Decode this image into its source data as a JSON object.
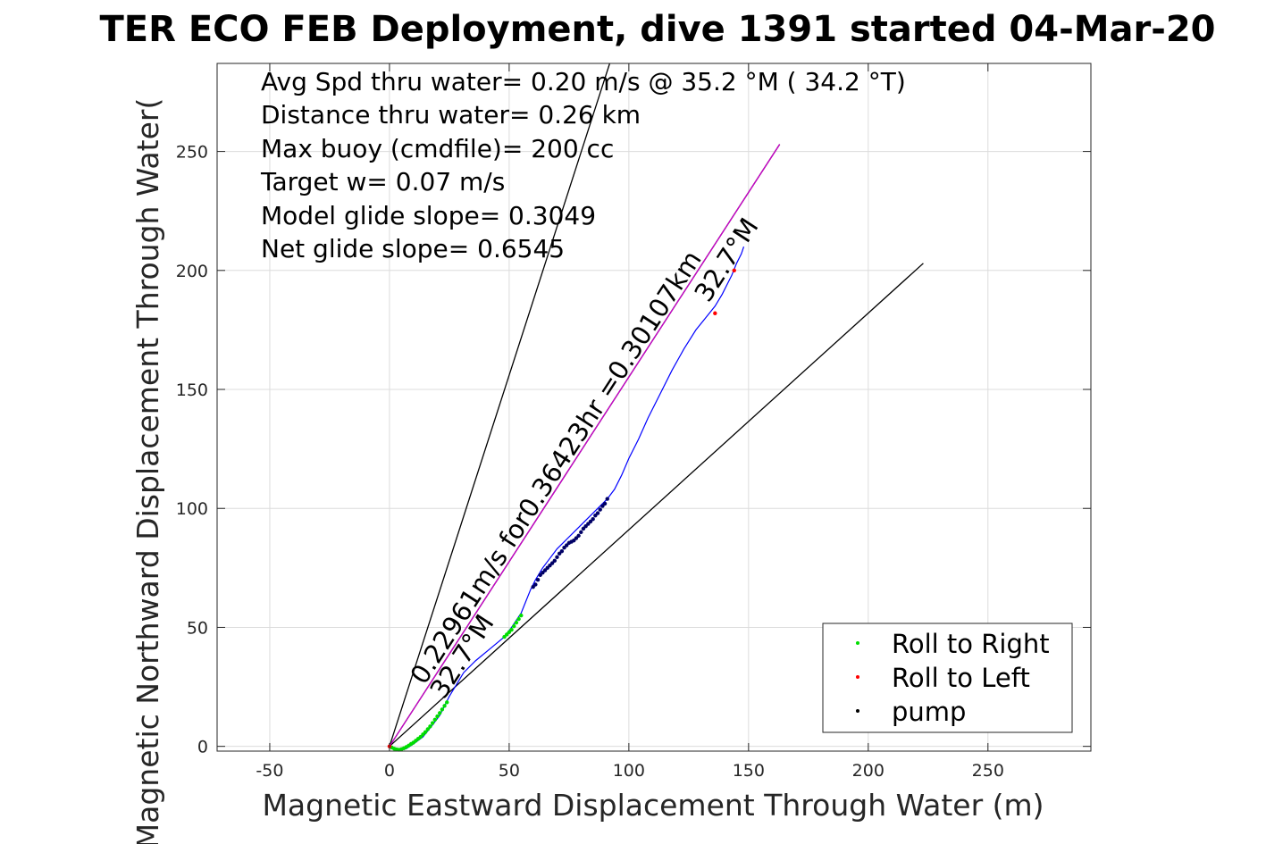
{
  "chart_data": {
    "type": "scatter",
    "title": "TER ECO FEB Deployment, dive 1391 started 04-Mar-20",
    "xlabel": "Magnetic Eastward Displacement Through Water (m)",
    "ylabel": "Magnetic Northward Displacement Through Water(",
    "xlim": [
      -72,
      293
    ],
    "ylim": [
      -2,
      287
    ],
    "xticks": [
      -50,
      0,
      50,
      100,
      150,
      200,
      250
    ],
    "yticks": [
      0,
      50,
      100,
      150,
      200,
      250
    ],
    "xtick_labels": [
      "-50",
      "0",
      "50",
      "100",
      "150",
      "200",
      "250"
    ],
    "ytick_labels": [
      "0",
      "50",
      "100",
      "150",
      "200",
      "250"
    ],
    "grid": true,
    "legend_position": "bottom-right",
    "info_lines": [
      "Avg Spd thru water=  0.20 m/s @  35.2 °M ( 34.2 °T)",
      "Distance thru water=  0.26 km",
      "Max buoy (cmdfile)= 200 cc",
      "Target w= 0.07 m/s",
      "Model glide slope= 0.3049",
      "Net glide slope= 0.6545"
    ],
    "annotations": {
      "heading_start": "32.7°M",
      "heading_end": "32.7°M",
      "speed_text": "0.22961m/s for0.36423hr =0.30107km"
    },
    "reference_lines": [
      {
        "color": "#000000",
        "x": [
          0,
          92
        ],
        "y": [
          0,
          287
        ]
      },
      {
        "color": "#000000",
        "x": [
          0,
          223
        ],
        "y": [
          0,
          203
        ]
      },
      {
        "color": "#000000",
        "x": [
          0,
          163
        ],
        "y": [
          0,
          253
        ]
      },
      {
        "color": "#cc00cc",
        "x": [
          0,
          163
        ],
        "y": [
          0,
          253
        ]
      }
    ],
    "track": {
      "color": "#0000ff",
      "x": [
        0,
        2,
        4,
        7,
        10,
        14,
        18,
        21,
        23,
        25,
        28,
        31,
        36,
        42,
        48,
        51,
        53,
        55,
        57,
        59,
        61,
        64,
        67,
        70,
        73,
        76,
        79,
        82,
        85,
        88,
        91,
        94,
        97,
        100,
        104,
        108,
        113,
        118,
        123,
        128,
        132,
        136,
        139,
        141,
        143,
        145,
        147,
        148
      ],
      "y": [
        0,
        -1,
        -1.5,
        -1,
        1,
        4,
        9,
        13,
        17,
        21,
        26,
        31,
        36,
        41,
        46,
        50,
        53,
        56,
        61,
        66,
        70,
        75,
        79,
        83,
        86,
        89,
        92,
        95,
        98,
        101,
        104,
        108,
        114,
        121,
        129,
        138,
        148,
        158,
        167,
        175,
        180,
        185,
        190,
        194,
        198,
        203,
        207,
        210
      ]
    },
    "series": [
      {
        "name": "Roll to Right",
        "color": "#00dd00",
        "x": [
          1,
          2,
          3,
          4,
          5,
          6,
          7,
          8,
          9,
          10,
          11,
          12,
          13,
          14,
          15,
          16,
          17,
          18,
          19,
          20,
          21,
          22,
          23,
          24,
          48,
          49,
          50,
          51,
          52,
          53,
          54,
          55
        ],
        "y": [
          -0.5,
          -1,
          -1.3,
          -1.4,
          -1.2,
          -0.8,
          -0.3,
          0.3,
          1,
          1.6,
          2.4,
          3.2,
          4,
          5,
          6,
          7.2,
          8.4,
          9.8,
          11.2,
          12.6,
          14,
          15.5,
          17,
          18.5,
          46,
          47,
          48,
          49,
          50.5,
          52,
          53.5,
          55
        ]
      },
      {
        "name": "Roll to Left",
        "color": "#ff0000",
        "x": [
          0,
          136,
          144
        ],
        "y": [
          0,
          182,
          200
        ]
      },
      {
        "name": "pump",
        "color": "#000066",
        "x": [
          60,
          61,
          62,
          63,
          64,
          65,
          66,
          67,
          68,
          69,
          70,
          71,
          72,
          73,
          74,
          75,
          76,
          77,
          78,
          79,
          80,
          81,
          82,
          83,
          84,
          85,
          86,
          87,
          88,
          89,
          90,
          91
        ],
        "y": [
          67,
          68,
          70,
          72,
          73,
          74,
          75,
          76,
          77,
          78,
          79.5,
          81,
          82,
          83.5,
          84.5,
          85.5,
          86,
          86.5,
          87.5,
          88.5,
          90,
          91.5,
          92.5,
          93.5,
          94.5,
          95.5,
          97,
          98,
          99.5,
          101,
          102,
          104
        ]
      }
    ],
    "legend": [
      {
        "label": "Roll to Right",
        "color": "#00dd00"
      },
      {
        "label": "Roll to Left",
        "color": "#ff0000"
      },
      {
        "label": "pump",
        "color": "#000000"
      }
    ]
  }
}
